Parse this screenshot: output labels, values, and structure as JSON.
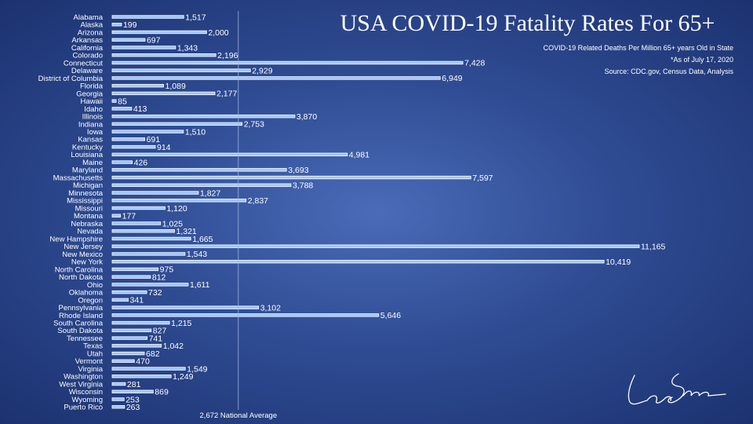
{
  "title": "USA COVID-19 Fatality Rates For 65+",
  "subtitle": "COVID-19 Related Deaths Per Million 65+ years Old in State",
  "note": "*As of July 17, 2020",
  "source": "Source: CDC.gov, Census Data, Analysis",
  "colors": {
    "bar_fill": "#9dc3ff",
    "bar_outline": "#ffffff",
    "background_center": "#4a6bb8",
    "background_edge": "#1c3270",
    "text": "#ffffff"
  },
  "chart_data": {
    "type": "bar",
    "orientation": "horizontal",
    "grid": false,
    "legend": "none",
    "xlim": [
      0,
      11165
    ],
    "categories": [
      "Alabama",
      "Alaska",
      "Arizona",
      "Arkansas",
      "California",
      "Colorado",
      "Connecticut",
      "Delaware",
      "District of Columbia",
      "Florida",
      "Georgia",
      "Hawaii",
      "Idaho",
      "Illinois",
      "Indiana",
      "Iowa",
      "Kansas",
      "Kentucky",
      "Louisiana",
      "Maine",
      "Maryland",
      "Massachusetts",
      "Michigan",
      "Minnesota",
      "Mississippi",
      "Missouri",
      "Montana",
      "Nebraska",
      "Nevada",
      "New Hampshire",
      "New Jersey",
      "New Mexico",
      "New York",
      "North Carolina",
      "North Dakota",
      "Ohio",
      "Oklahoma",
      "Oregon",
      "Pennsylvania",
      "Rhode Island",
      "South Carolina",
      "South Dakota",
      "Tennessee",
      "Texas",
      "Utah",
      "Vermont",
      "Virginia",
      "Washington",
      "West Virginia",
      "Wisconsin",
      "Wyoming",
      "Puerto Rico"
    ],
    "values": [
      1517,
      199,
      2000,
      697,
      1343,
      2196,
      7428,
      2929,
      6949,
      1089,
      2177,
      85,
      413,
      3870,
      2753,
      1510,
      691,
      914,
      4981,
      426,
      3693,
      7597,
      3788,
      1827,
      2837,
      1120,
      177,
      1025,
      1321,
      1665,
      11165,
      1543,
      10419,
      975,
      812,
      1611,
      732,
      341,
      3102,
      5646,
      1215,
      827,
      741,
      1042,
      682,
      470,
      1549,
      1249,
      281,
      869,
      253,
      263
    ],
    "value_labels": [
      "1,517",
      "199",
      "2,000",
      "697",
      "1,343",
      "2,196",
      "7,428",
      "2,929",
      "6,949",
      "1,089",
      "2,177",
      "85",
      "413",
      "3,870",
      "2,753",
      "1,510",
      "691",
      "914",
      "4,981",
      "426",
      "3,693",
      "7,597",
      "3,788",
      "1,827",
      "2,837",
      "1,120",
      "177",
      "1,025",
      "1,321",
      "1,665",
      "11,165",
      "1,543",
      "10,419",
      "975",
      "812",
      "1,611",
      "732",
      "341",
      "3,102",
      "5,646",
      "1,215",
      "827",
      "741",
      "1,042",
      "682",
      "470",
      "1,549",
      "1,249",
      "281",
      "869",
      "253",
      "263"
    ],
    "reference_line": {
      "value": 2672,
      "label": "2,672 National Average"
    }
  },
  "signature_icon": "handwritten-signature"
}
